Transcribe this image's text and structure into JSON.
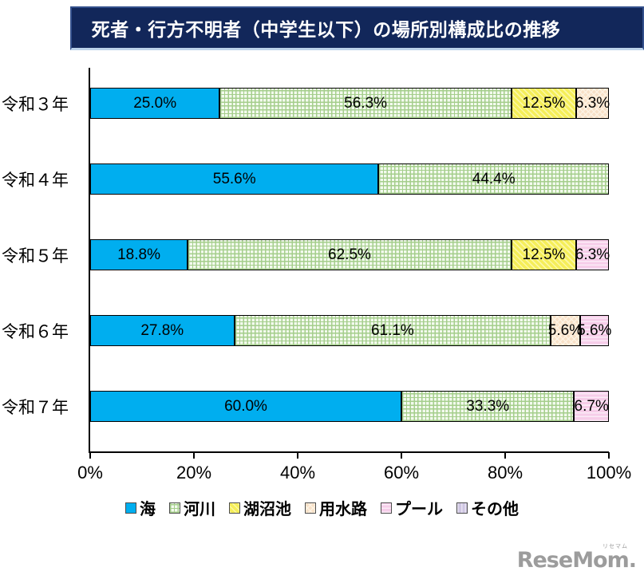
{
  "banner": {
    "title": "死者・行方不明者（中学生以下）の場所別構成比の推移"
  },
  "theme": {
    "banner_bg": "#12275A",
    "banner_border": "#33508C",
    "banner_underline": "#BCD3EA",
    "text": "#000000",
    "watermark": "#9C9C9C"
  },
  "chart_data": {
    "type": "bar",
    "subtype": "horizontal-stacked",
    "title": "死者・行方不明者（中学生以下）の場所別構成比の推移",
    "categories": [
      "令和３年",
      "令和４年",
      "令和５年",
      "令和６年",
      "令和７年"
    ],
    "series": [
      {
        "name": "海",
        "pattern": "solid",
        "base": "#00AEEF",
        "line": "#00AEEF",
        "values": [
          25.0,
          55.6,
          18.8,
          27.8,
          60.0
        ]
      },
      {
        "name": "河川",
        "pattern": "grid",
        "base": "#F3FAEE",
        "line": "#A5CE8C",
        "values": [
          56.3,
          44.4,
          62.5,
          61.1,
          33.3
        ]
      },
      {
        "name": "湖沼池",
        "pattern": "diag",
        "base": "#F5EE59",
        "line": "#FBF7A6",
        "values": [
          12.5,
          null,
          12.5,
          null,
          null
        ]
      },
      {
        "name": "用水路",
        "pattern": "diamond",
        "base": "#F8E1C8",
        "line": "#FDF3E4",
        "values": [
          6.3,
          null,
          null,
          5.6,
          null
        ]
      },
      {
        "name": "プール",
        "pattern": "hlines",
        "base": "#F6CDE9",
        "line": "#FBEBF6",
        "values": [
          null,
          null,
          6.3,
          5.6,
          6.7
        ]
      },
      {
        "name": "その他",
        "pattern": "vlines",
        "base": "#CEC5E2",
        "line": "#E8E3F1",
        "values": [
          null,
          null,
          null,
          null,
          null
        ]
      }
    ],
    "x_ticks": [
      "0%",
      "20%",
      "40%",
      "60%",
      "80%",
      "100%"
    ],
    "xlim": [
      0,
      100
    ],
    "value_suffix": "%",
    "value_decimals": 1,
    "legend_position": "bottom",
    "grid": false
  },
  "watermark": {
    "ruby": "リセマム",
    "text": "ReseMom."
  }
}
